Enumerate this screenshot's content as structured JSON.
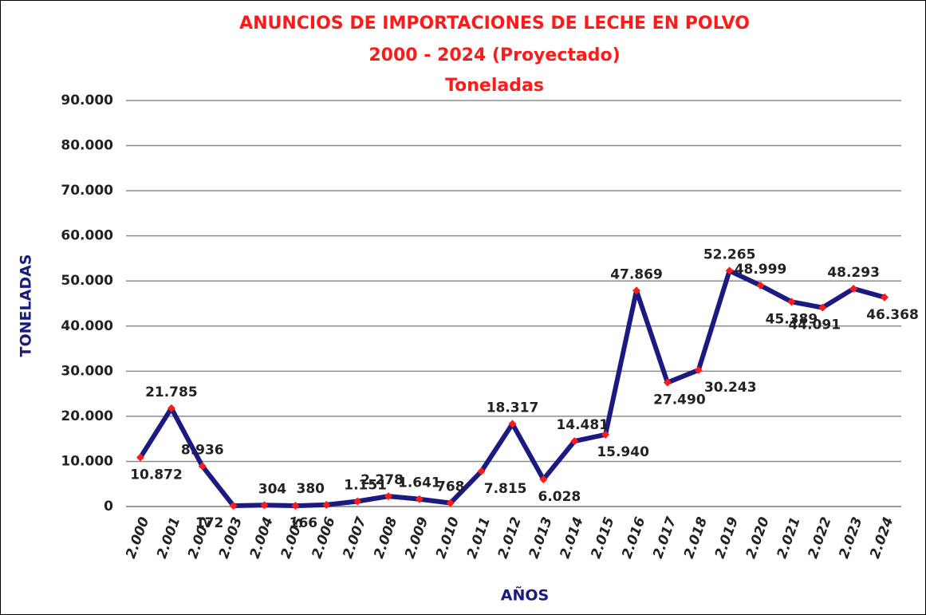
{
  "chart_data": {
    "type": "line",
    "title": "ANUNCIOS DE IMPORTACIONES DE LECHE EN POLVO",
    "subtitle": "2000 - 2024 (Proyectado)",
    "subtitle2": "Toneladas",
    "y_label": "TONELADAS",
    "x_label": "AÑOS",
    "categories": [
      "2.000",
      "2.001",
      "2.002",
      "2.003",
      "2.004",
      "2.005",
      "2.006",
      "2.007",
      "2.008",
      "2.009",
      "2.010",
      "2.011",
      "2.012",
      "2.013",
      "2.014",
      "2.015",
      "2.016",
      "2.017",
      "2.018",
      "2.019",
      "2.020",
      "2.021",
      "2.022",
      "2.023",
      "2.024"
    ],
    "series": [
      {
        "color": "#1a1a80",
        "marker_color": "#ff1a1a",
        "values": [
          10872,
          21785,
          8936,
          172,
          304,
          166,
          380,
          1151,
          2278,
          1641,
          768,
          7815,
          18317,
          6028,
          14481,
          15940,
          47869,
          27490,
          30243,
          52265,
          48999,
          45389,
          44091,
          48293,
          46368
        ],
        "value_labels": [
          "10.872",
          "21.785",
          "8.936",
          "172",
          "304",
          "166",
          "380",
          "1.151",
          "2.278",
          "1.641",
          "768",
          "7.815",
          "18.317",
          "6.028",
          "14.481",
          "15.940",
          "47.869",
          "27.490",
          "30.243",
          "52.265",
          "48.999",
          "45.389",
          "44.091",
          "48.293",
          "46.368"
        ]
      }
    ],
    "ylim": [
      0,
      90000
    ],
    "yticks": [
      0,
      {
        "value": 10000,
        "label": "10.000"
      },
      {
        "value": 20000,
        "label": "20.000"
      },
      {
        "value": 30000,
        "label": "30.000"
      },
      {
        "value": 40000,
        "label": "40.000"
      },
      {
        "value": 50000,
        "label": "50.000"
      },
      {
        "value": 60000,
        "label": "60.000"
      },
      {
        "value": 70000,
        "label": "70.000"
      },
      {
        "value": 80000,
        "label": "80.000"
      },
      {
        "value": 90000,
        "label": "90.000"
      }
    ],
    "grid": true
  }
}
